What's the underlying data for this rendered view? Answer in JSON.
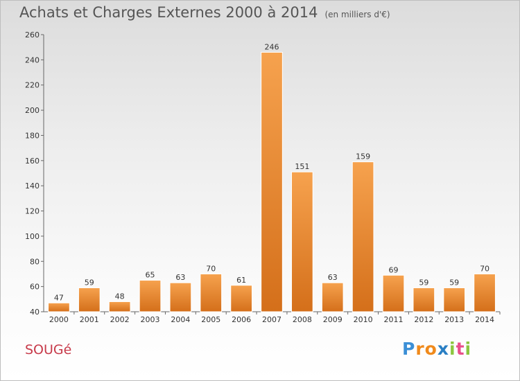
{
  "header": {
    "title": "Achats et Charges Externes 2000 à 2014",
    "subtitle": "(en milliers d'€)"
  },
  "place_name": "SOUGé",
  "logo": {
    "text": "Proxiti",
    "letters": [
      {
        "ch": "P",
        "color": "#3b8fd6"
      },
      {
        "ch": "r",
        "color": "#f08a1c"
      },
      {
        "ch": "o",
        "color": "#f08a1c"
      },
      {
        "ch": "x",
        "color": "#2a7fc4"
      },
      {
        "ch": "i",
        "color": "#8cc63f"
      },
      {
        "ch": "t",
        "color": "#e94f8a"
      },
      {
        "ch": "i",
        "color": "#8cc63f"
      }
    ]
  },
  "colors": {
    "bar_light": "#f6a24e",
    "bar_dark": "#d46f1a",
    "axis": "#666666",
    "grid": "#d0d0d0"
  },
  "chart_data": {
    "type": "bar",
    "title": "Achats et Charges Externes 2000 à 2014",
    "subtitle": "(en milliers d'€)",
    "categories": [
      "2000",
      "2001",
      "2002",
      "2003",
      "2004",
      "2005",
      "2006",
      "2007",
      "2008",
      "2009",
      "2010",
      "2011",
      "2012",
      "2013",
      "2014"
    ],
    "values": [
      47,
      59,
      48,
      65,
      63,
      70,
      61,
      246,
      151,
      63,
      159,
      69,
      59,
      59,
      70
    ],
    "ylim": [
      40,
      260
    ],
    "yticks": [
      40,
      60,
      80,
      100,
      120,
      140,
      160,
      180,
      200,
      220,
      240,
      260
    ],
    "grid": false,
    "data_labels": true
  }
}
